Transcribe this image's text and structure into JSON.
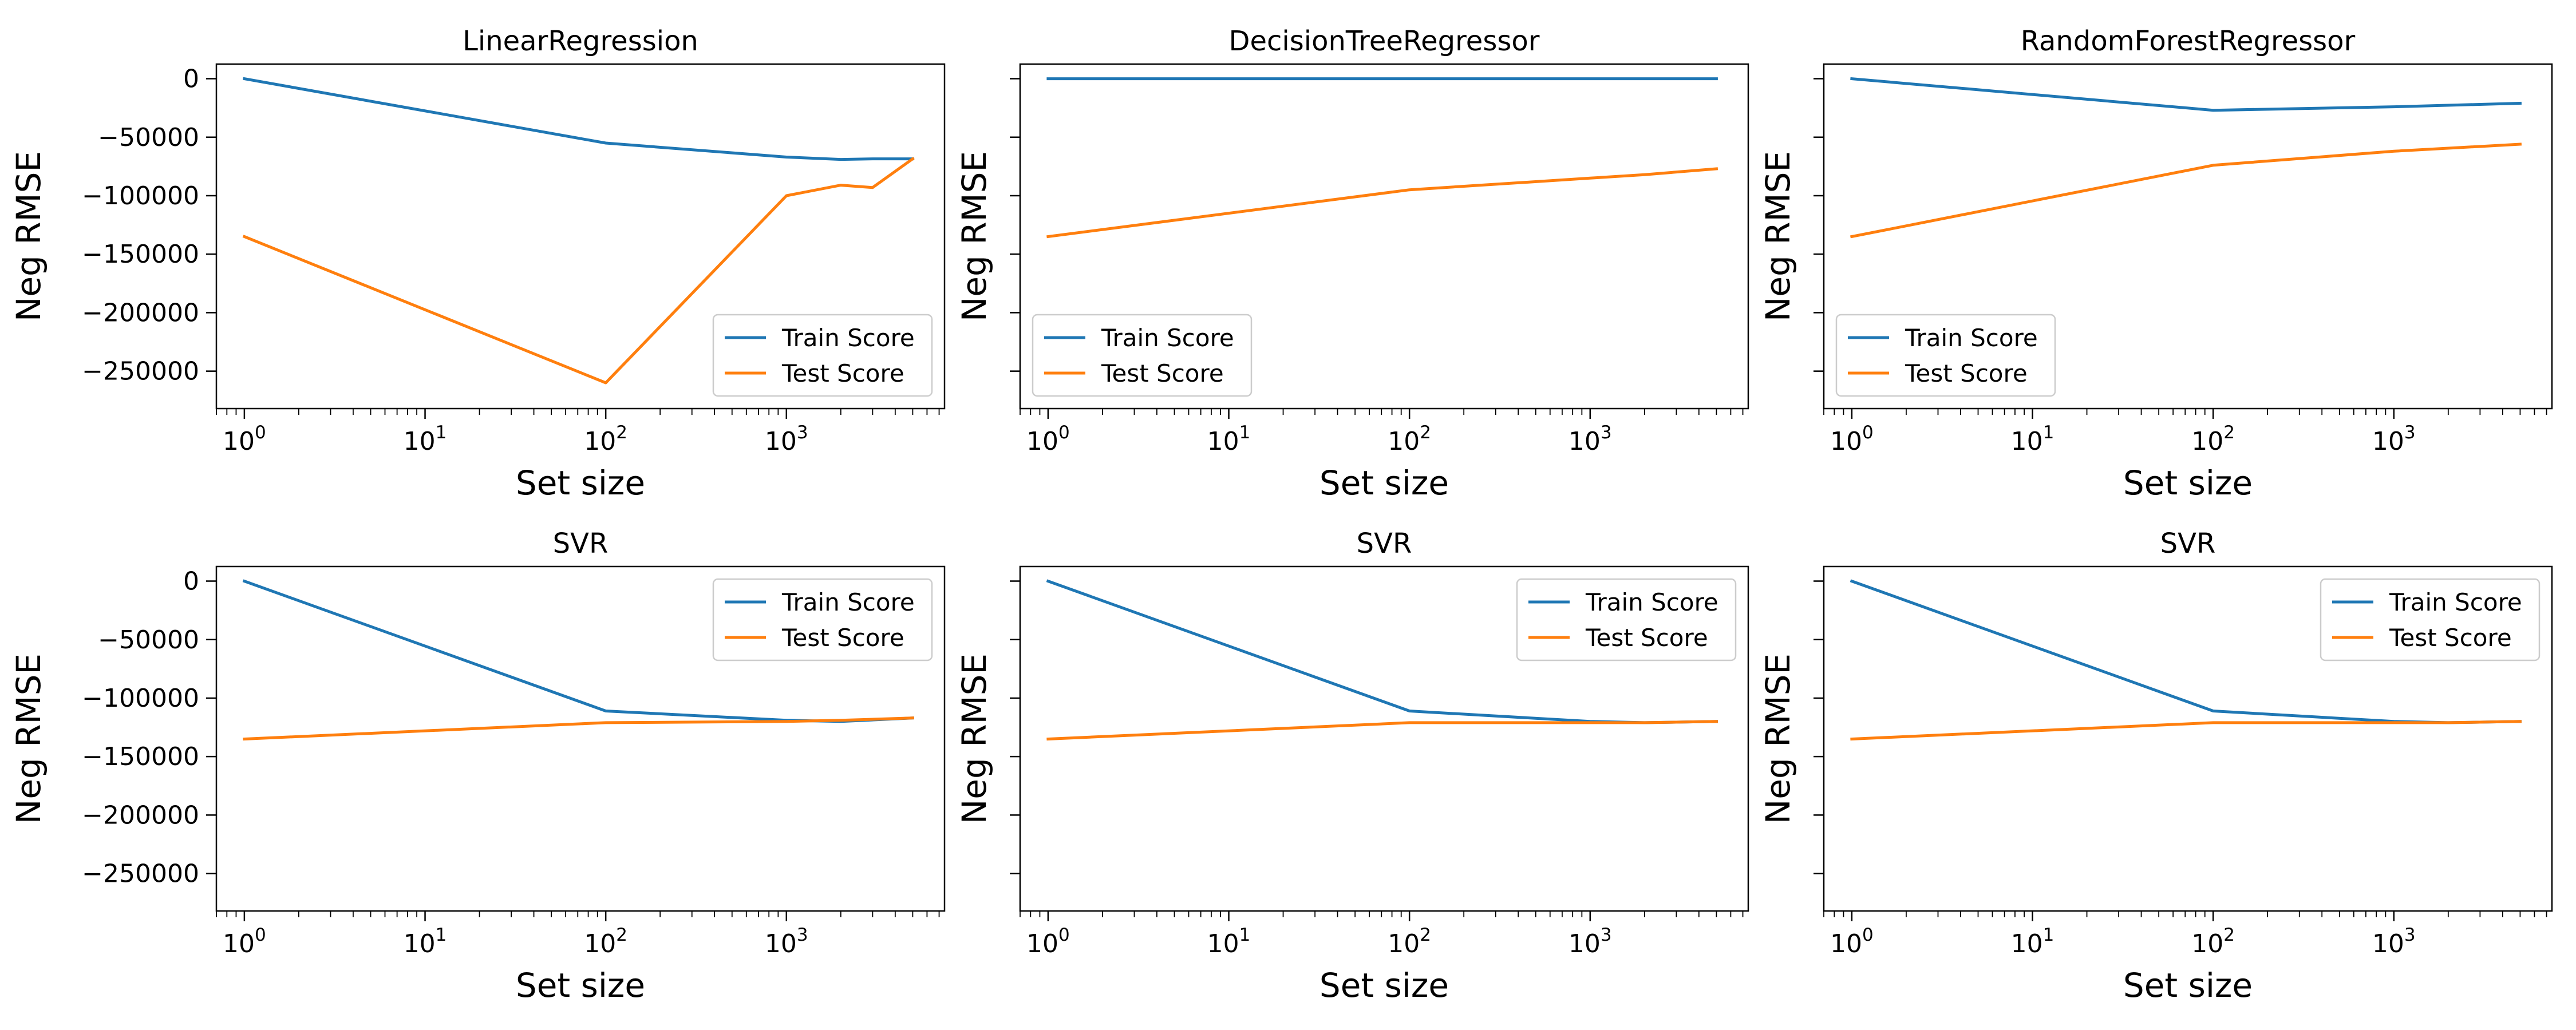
{
  "figure": {
    "series_colors": {
      "train": "#1f77b4",
      "test": "#ff7f0e"
    }
  },
  "chart_data": [
    {
      "type": "line",
      "title": "LinearRegression",
      "xlabel": "Set size",
      "ylabel": "Neg RMSE",
      "xscale": "log",
      "xlim": [
        0.7,
        7500
      ],
      "ylim": [
        -282000,
        12500
      ],
      "xticks": [
        "10^0",
        "10^1",
        "10^2",
        "10^3"
      ],
      "yticks": [
        0,
        -50000,
        -100000,
        -150000,
        -200000,
        -250000
      ],
      "show_yticklabels": true,
      "grid": false,
      "legend": "lower-right",
      "x": [
        1,
        100,
        1000,
        2000,
        3000,
        5000
      ],
      "series": [
        {
          "name": "Train Score",
          "values": [
            0,
            -55000,
            -67000,
            -69000,
            -68500,
            -68500
          ]
        },
        {
          "name": "Test Score",
          "values": [
            -135000,
            -260000,
            -100000,
            -91000,
            -93000,
            -68500
          ]
        }
      ]
    },
    {
      "type": "line",
      "title": "DecisionTreeRegressor",
      "xlabel": "Set size",
      "ylabel": "Neg RMSE",
      "xscale": "log",
      "xlim": [
        0.7,
        7500
      ],
      "ylim": [
        -282000,
        12500
      ],
      "xticks": [
        "10^0",
        "10^1",
        "10^2",
        "10^3"
      ],
      "yticks": [
        0,
        -50000,
        -100000,
        -150000,
        -200000,
        -250000
      ],
      "show_yticklabels": false,
      "grid": false,
      "legend": "lower-left",
      "x": [
        1,
        100,
        1000,
        2000,
        5000
      ],
      "series": [
        {
          "name": "Train Score",
          "values": [
            0,
            0,
            0,
            0,
            0
          ]
        },
        {
          "name": "Test Score",
          "values": [
            -135000,
            -95000,
            -85000,
            -82000,
            -77000
          ]
        }
      ]
    },
    {
      "type": "line",
      "title": "RandomForestRegressor",
      "xlabel": "Set size",
      "ylabel": "Neg RMSE",
      "xscale": "log",
      "xlim": [
        0.7,
        7500
      ],
      "ylim": [
        -282000,
        12500
      ],
      "xticks": [
        "10^0",
        "10^1",
        "10^2",
        "10^3"
      ],
      "yticks": [
        0,
        -50000,
        -100000,
        -150000,
        -200000,
        -250000
      ],
      "show_yticklabels": false,
      "grid": false,
      "legend": "lower-left",
      "x": [
        1,
        100,
        1000,
        5000
      ],
      "series": [
        {
          "name": "Train Score",
          "values": [
            0,
            -27000,
            -24000,
            -21000
          ]
        },
        {
          "name": "Test Score",
          "values": [
            -135000,
            -74000,
            -62000,
            -56000
          ]
        }
      ]
    },
    {
      "type": "line",
      "title": "SVR",
      "xlabel": "Set size",
      "ylabel": "Neg RMSE",
      "xscale": "log",
      "xlim": [
        0.7,
        7500
      ],
      "ylim": [
        -282000,
        12500
      ],
      "xticks": [
        "10^0",
        "10^1",
        "10^2",
        "10^3"
      ],
      "yticks": [
        0,
        -50000,
        -100000,
        -150000,
        -200000,
        -250000
      ],
      "show_yticklabels": true,
      "grid": false,
      "legend": "upper-right",
      "x": [
        1,
        100,
        1000,
        2000,
        5000
      ],
      "series": [
        {
          "name": "Train Score",
          "values": [
            0,
            -111000,
            -119000,
            -120000,
            -117000
          ]
        },
        {
          "name": "Test Score",
          "values": [
            -135000,
            -121000,
            -120000,
            -119000,
            -117000
          ]
        }
      ]
    },
    {
      "type": "line",
      "title": "SVR",
      "xlabel": "Set size",
      "ylabel": "Neg RMSE",
      "xscale": "log",
      "xlim": [
        0.7,
        7500
      ],
      "ylim": [
        -282000,
        12500
      ],
      "xticks": [
        "10^0",
        "10^1",
        "10^2",
        "10^3"
      ],
      "yticks": [
        0,
        -50000,
        -100000,
        -150000,
        -200000,
        -250000
      ],
      "show_yticklabels": false,
      "grid": false,
      "legend": "upper-right",
      "x": [
        1,
        100,
        1000,
        2000,
        5000
      ],
      "series": [
        {
          "name": "Train Score",
          "values": [
            0,
            -111000,
            -120000,
            -121000,
            -120000
          ]
        },
        {
          "name": "Test Score",
          "values": [
            -135000,
            -121000,
            -121000,
            -121000,
            -120000
          ]
        }
      ]
    },
    {
      "type": "line",
      "title": "SVR",
      "xlabel": "Set size",
      "ylabel": "Neg RMSE",
      "xscale": "log",
      "xlim": [
        0.7,
        7500
      ],
      "ylim": [
        -282000,
        12500
      ],
      "xticks": [
        "10^0",
        "10^1",
        "10^2",
        "10^3"
      ],
      "yticks": [
        0,
        -50000,
        -100000,
        -150000,
        -200000,
        -250000
      ],
      "show_yticklabels": false,
      "grid": false,
      "legend": "upper-right",
      "x": [
        1,
        100,
        1000,
        2000,
        5000
      ],
      "series": [
        {
          "name": "Train Score",
          "values": [
            0,
            -111000,
            -120000,
            -121000,
            -120000
          ]
        },
        {
          "name": "Test Score",
          "values": [
            -135000,
            -121000,
            -121000,
            -121000,
            -120000
          ]
        }
      ]
    }
  ]
}
